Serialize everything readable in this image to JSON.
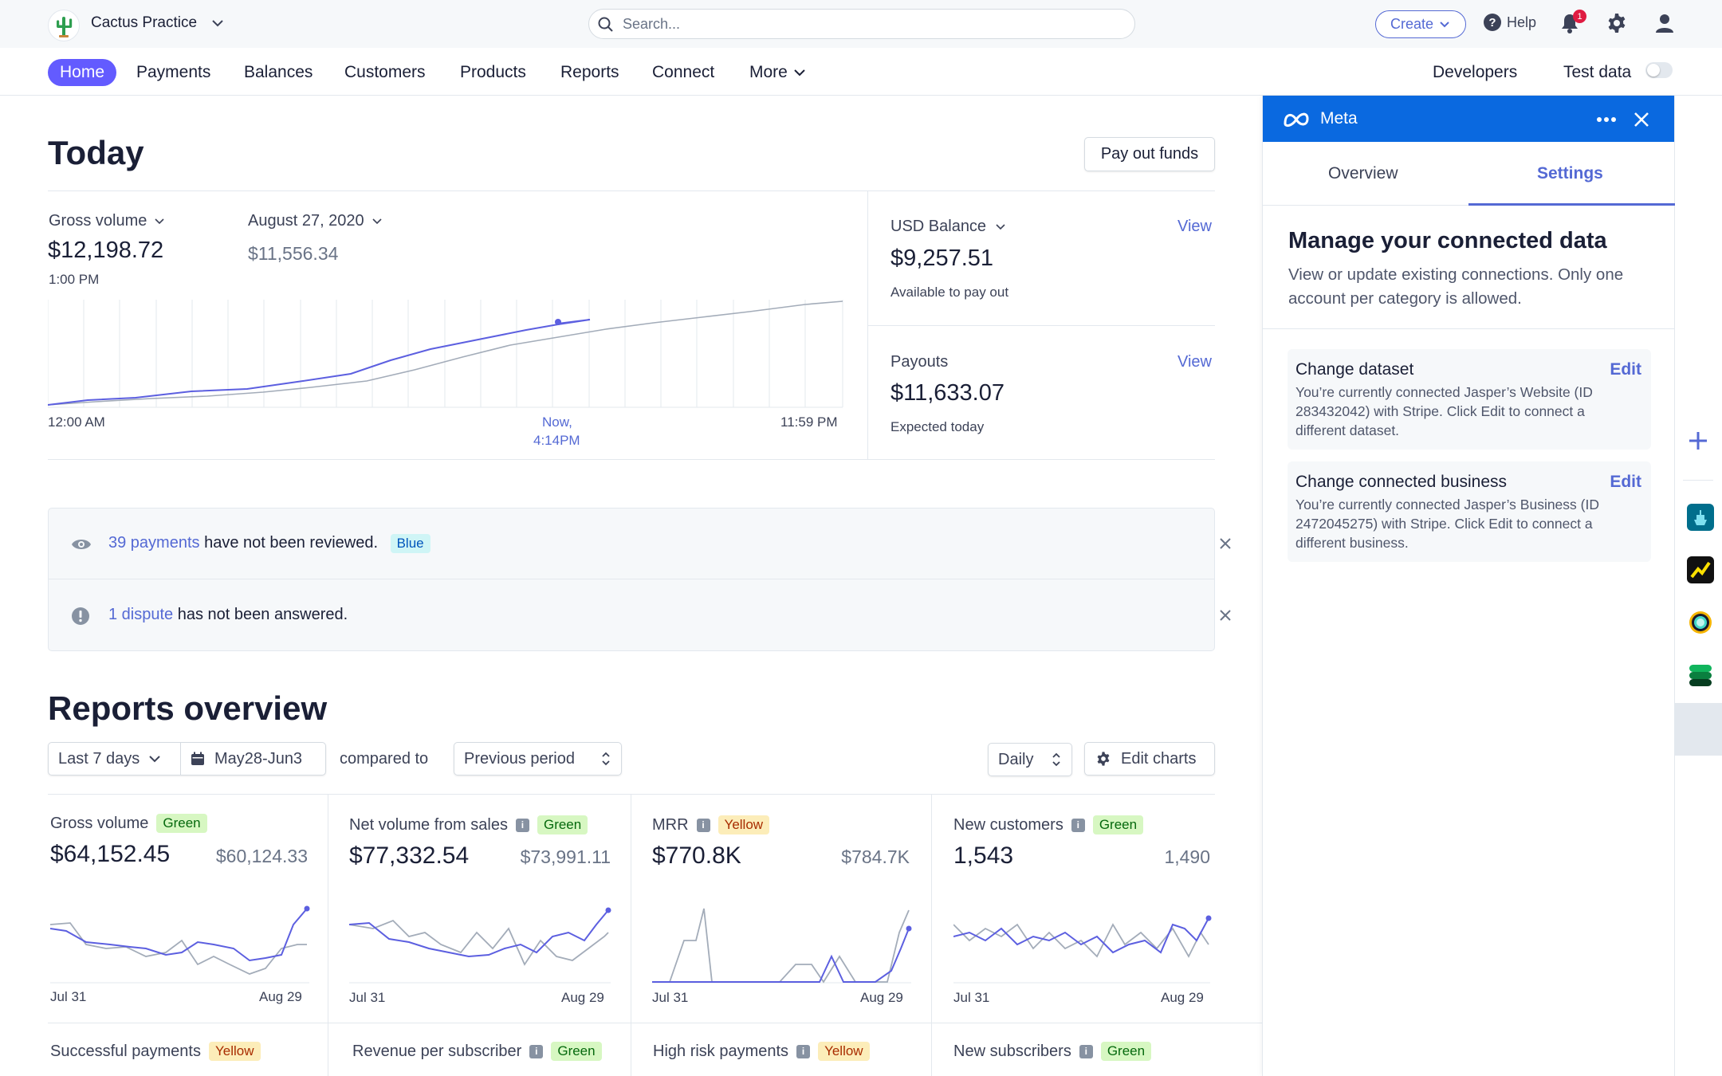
{
  "topbar": {
    "account_name": "Cactus Practice",
    "search_placeholder": "Search...",
    "create_label": "Create",
    "help_label": "Help",
    "notification_count": "1"
  },
  "nav": {
    "items": [
      "Home",
      "Payments",
      "Balances",
      "Customers",
      "Products",
      "Reports",
      "Connect",
      "More"
    ],
    "developers": "Developers",
    "test_data": "Test data"
  },
  "today": {
    "title": "Today",
    "payout_button": "Pay out funds",
    "gross_label": "Gross volume",
    "gross_value": "$12,198.72",
    "gross_time": "1:00 PM",
    "compare_date": "August 27, 2020",
    "compare_value": "$11,556.34",
    "axis_start": "12:00 AM",
    "axis_now_1": "Now,",
    "axis_now_2": "4:14PM",
    "axis_end": "11:59 PM",
    "balance_label": "USD Balance",
    "balance_value": "$9,257.51",
    "balance_note": "Available to pay out",
    "payouts_label": "Payouts",
    "payouts_value": "$11,633.07",
    "payouts_note": "Expected today",
    "view_label": "View"
  },
  "alerts": [
    {
      "link": "39 payments",
      "text": " have not been reviewed.",
      "badge": "Blue"
    },
    {
      "link": "1 dispute",
      "text": " has not been answered.",
      "badge": ""
    }
  ],
  "reports": {
    "title": "Reports overview",
    "range": "Last 7 days",
    "dates": "May28-Jun3",
    "compared_to": "compared to",
    "period": "Previous period",
    "interval": "Daily",
    "edit_charts": "Edit charts",
    "cards": [
      {
        "title": "Gross volume",
        "badge": "Green",
        "value": "$64,152.45",
        "prev": "$60,124.33",
        "start": "Jul 31",
        "end": "Aug 29",
        "info": false
      },
      {
        "title": "Net volume from sales",
        "badge": "Green",
        "value": "$77,332.54",
        "prev": "$73,991.11",
        "start": "Jul 31",
        "end": "Aug 29",
        "info": true
      },
      {
        "title": "MRR",
        "badge": "Yellow",
        "value": "$770.8K",
        "prev": "$784.7K",
        "start": "Jul 31",
        "end": "Aug 29",
        "info": true
      },
      {
        "title": "New customers",
        "badge": "Green",
        "value": "1,543",
        "prev": "1,490",
        "start": "Jul 31",
        "end": "Aug 29",
        "info": true
      }
    ],
    "cards_row2": [
      {
        "title": "Successful payments",
        "badge": "Yellow",
        "info": false
      },
      {
        "title": "Revenue per subscriber",
        "badge": "Green",
        "info": true
      },
      {
        "title": "High risk payments",
        "badge": "Yellow",
        "info": true
      },
      {
        "title": "New subscribers",
        "badge": "Green",
        "info": true
      }
    ]
  },
  "panel": {
    "app_name": "Meta",
    "tab_overview": "Overview",
    "tab_settings": "Settings",
    "heading": "Manage your connected data",
    "description": "View or update existing connections. Only one account per category is allowed.",
    "items": [
      {
        "title": "Change dataset",
        "edit": "Edit",
        "body": "You’re currently connected Jasper’s Website (ID 283432042) with Stripe. Click Edit to connect a different dataset."
      },
      {
        "title": "Change connected business",
        "edit": "Edit",
        "body": "You’re currently connected Jasper’s Business (ID 2472045275) with Stripe. Click Edit to connect a different business."
      }
    ]
  },
  "colors": {
    "accent": "#635bff",
    "link": "#5469d4",
    "meta_blue": "#0a69e0",
    "series_current": "#5c5fe0",
    "series_previous": "#a3acb9"
  }
}
